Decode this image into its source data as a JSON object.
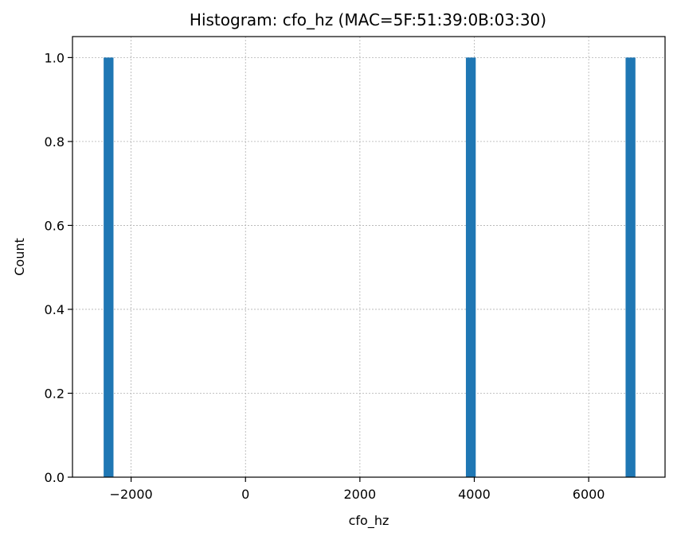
{
  "chart_data": {
    "type": "bar",
    "title": "Histogram: cfo_hz (MAC=5F:51:39:0B:03:30)",
    "xlabel": "cfo_hz",
    "ylabel": "Count",
    "xlim": [
      -3025,
      7335
    ],
    "ylim": [
      0,
      1.05
    ],
    "grid": true,
    "bar_color": "#1f77b4",
    "bin_width": 172,
    "bars": [
      {
        "x_start": -2480,
        "x_end": -2308,
        "count": 1
      },
      {
        "x_start": 3853,
        "x_end": 4025,
        "count": 1
      },
      {
        "x_start": 6645,
        "x_end": 6817,
        "count": 1
      }
    ],
    "x_ticks": [
      {
        "value": -2000,
        "label": "−2000"
      },
      {
        "value": 0,
        "label": "0"
      },
      {
        "value": 2000,
        "label": "2000"
      },
      {
        "value": 4000,
        "label": "4000"
      },
      {
        "value": 6000,
        "label": "6000"
      }
    ],
    "y_ticks": [
      {
        "value": 0,
        "label": "0.0"
      },
      {
        "value": 0.2,
        "label": "0.2"
      },
      {
        "value": 0.4,
        "label": "0.4"
      },
      {
        "value": 0.6,
        "label": "0.6"
      },
      {
        "value": 0.8,
        "label": "0.8"
      },
      {
        "value": 1.0,
        "label": "1.0"
      }
    ]
  }
}
